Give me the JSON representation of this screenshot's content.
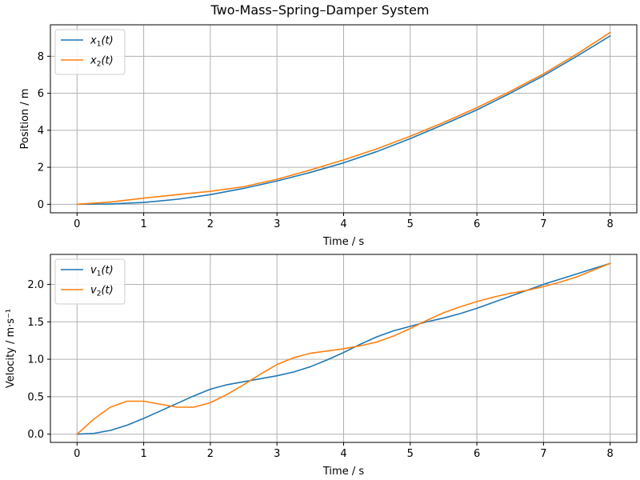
{
  "figure": {
    "title": "Two-Mass–Spring–Damper System"
  },
  "colors": {
    "series1": "#1f77b4",
    "series2": "#ff7f0e",
    "grid": "#b0b0b0"
  },
  "chart_data": [
    {
      "type": "line",
      "xlabel": "Time / s",
      "ylabel": "Position / m",
      "xlim": [
        -0.4,
        8.4
      ],
      "ylim": [
        -0.46,
        9.7
      ],
      "xticks": [
        0,
        1,
        2,
        3,
        4,
        5,
        6,
        7,
        8
      ],
      "yticks": [
        0,
        2,
        4,
        6,
        8
      ],
      "grid": true,
      "legend": "top-left",
      "series": [
        {
          "name": "x1(t)",
          "x": [
            0,
            0.5,
            1,
            1.5,
            2,
            2.5,
            3,
            3.5,
            4,
            4.5,
            5,
            5.5,
            6,
            6.5,
            7,
            7.5,
            8
          ],
          "y": [
            0,
            0.02,
            0.1,
            0.27,
            0.52,
            0.86,
            1.26,
            1.72,
            2.24,
            2.85,
            3.55,
            4.31,
            5.1,
            6.0,
            6.95,
            8.0,
            9.1
          ]
        },
        {
          "name": "x2(t)",
          "x": [
            0,
            0.5,
            1,
            1.5,
            2,
            2.5,
            3,
            3.5,
            4,
            4.5,
            5,
            5.5,
            6,
            6.5,
            7,
            7.5,
            8
          ],
          "y": [
            0,
            0.12,
            0.33,
            0.52,
            0.7,
            0.95,
            1.35,
            1.85,
            2.4,
            3.0,
            3.68,
            4.42,
            5.22,
            6.1,
            7.05,
            8.12,
            9.28
          ]
        }
      ]
    },
    {
      "type": "line",
      "xlabel": "Time / s",
      "ylabel": "Velocity / m·s⁻¹",
      "xlim": [
        -0.4,
        8.4
      ],
      "ylim": [
        -0.11,
        2.4
      ],
      "xticks": [
        0,
        1,
        2,
        3,
        4,
        5,
        6,
        7,
        8
      ],
      "yticks": [
        0.0,
        0.5,
        1.0,
        1.5,
        2.0
      ],
      "grid": true,
      "legend": "top-left",
      "series": [
        {
          "name": "v1(t)",
          "x": [
            0,
            0.25,
            0.5,
            0.75,
            1,
            1.25,
            1.5,
            1.75,
            2,
            2.25,
            2.5,
            2.75,
            3,
            3.25,
            3.5,
            3.75,
            4,
            4.25,
            4.5,
            4.75,
            5,
            5.25,
            5.5,
            5.75,
            6,
            6.25,
            6.5,
            6.75,
            7,
            7.25,
            7.5,
            7.75,
            8
          ],
          "y": [
            0,
            0.01,
            0.05,
            0.12,
            0.21,
            0.31,
            0.41,
            0.51,
            0.6,
            0.66,
            0.7,
            0.74,
            0.78,
            0.83,
            0.9,
            0.99,
            1.09,
            1.2,
            1.3,
            1.38,
            1.44,
            1.5,
            1.55,
            1.61,
            1.68,
            1.76,
            1.84,
            1.92,
            2.0,
            2.07,
            2.14,
            2.21,
            2.28
          ]
        },
        {
          "name": "v2(t)",
          "x": [
            0,
            0.25,
            0.5,
            0.75,
            1,
            1.25,
            1.5,
            1.75,
            2,
            2.25,
            2.5,
            2.75,
            3,
            3.25,
            3.5,
            3.75,
            4,
            4.25,
            4.5,
            4.75,
            5,
            5.25,
            5.5,
            5.75,
            6,
            6.25,
            6.5,
            6.75,
            7,
            7.25,
            7.5,
            7.75,
            8
          ],
          "y": [
            0,
            0.2,
            0.36,
            0.44,
            0.44,
            0.4,
            0.36,
            0.36,
            0.42,
            0.53,
            0.66,
            0.8,
            0.93,
            1.02,
            1.08,
            1.11,
            1.14,
            1.18,
            1.23,
            1.31,
            1.41,
            1.52,
            1.62,
            1.7,
            1.77,
            1.83,
            1.88,
            1.92,
            1.97,
            2.03,
            2.1,
            2.19,
            2.28
          ]
        }
      ]
    }
  ]
}
